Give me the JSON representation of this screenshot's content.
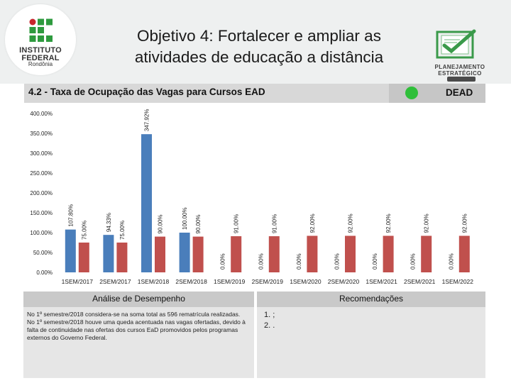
{
  "header": {
    "title_line1": "Objetivo 4: Fortalecer e ampliar as",
    "title_line2": "atividades de educação a distância",
    "subtitle": "4.2 - Taxa de Ocupação das Vagas para Cursos EAD",
    "unit": "DEAD",
    "status_color": "#2fbf3a"
  },
  "logos": {
    "institution_line1": "INSTITUTO",
    "institution_line2": "FEDERAL",
    "institution_line3": "Rondônia",
    "plan_line1": "PLANEJAMENTO",
    "plan_line2": "ESTRATÉGICO"
  },
  "chart_data": {
    "type": "bar",
    "categories": [
      "1SEM/2017",
      "2SEM/2017",
      "1SEM/2018",
      "2SEM/2018",
      "1SEM/2019",
      "2SEM/2019",
      "1SEM/2020",
      "2SEM/2020",
      "1SEM/2021",
      "2SEM/2021",
      "1SEM/2022"
    ],
    "series": [
      {
        "color": "#4a7ebb",
        "values": [
          107.8,
          94.33,
          347.92,
          100.0,
          0,
          0,
          0,
          0,
          0,
          0,
          0
        ],
        "labels": [
          "107.80%",
          "94.33%",
          "347.92%",
          "100.00%",
          "0.00%",
          "0.00%",
          "0.00%",
          "0.00%",
          "0.00%",
          "0.00%",
          "0.00%"
        ]
      },
      {
        "color": "#c0504d",
        "values": [
          75.0,
          75.0,
          90.0,
          90.0,
          91.0,
          91.0,
          92.0,
          92.0,
          92.0,
          92.0,
          92.0
        ],
        "labels": [
          "75.00%",
          "75.00%",
          "90.00%",
          "90.00%",
          "91.00%",
          "91.00%",
          "92.00%",
          "92.00%",
          "92.00%",
          "92.00%",
          "92.00%"
        ]
      }
    ],
    "y_ticks": [
      "0.00%",
      "50.00%",
      "100.00%",
      "150.00%",
      "200.00%",
      "250.00%",
      "300.00%",
      "350.00%",
      "400.00%"
    ],
    "ylim": [
      0,
      400
    ],
    "grid": false
  },
  "panels": {
    "analysis_title": "Análise de Desempenho",
    "analysis_text1": "No 1º semestre/2018 considera-se na soma total as 596 rematrícula realizadas.",
    "analysis_text2": "No 1º semestre/2018 houve uma queda acentuada nas vagas ofertadas, devido à falta de continuidade nas ofertas dos cursos EaD promovidos pelos programas externos do Governo Federal.",
    "recommendations_title": "Recomendações",
    "recommendations": [
      "1.  ;",
      "2.  ."
    ]
  }
}
